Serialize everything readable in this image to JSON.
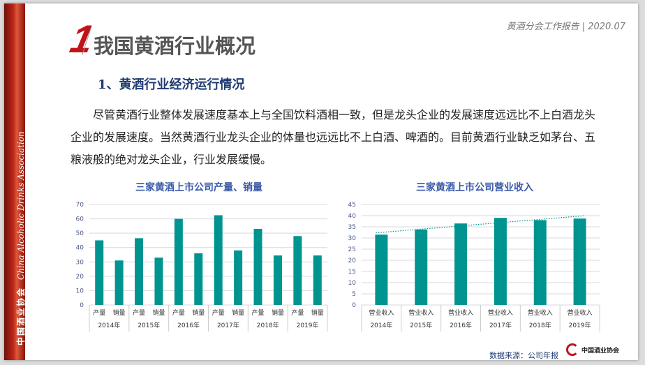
{
  "sidebar": {
    "org_cn": "中国酒业协会",
    "org_en": "China Alcoholic Drinks Association"
  },
  "header": {
    "section_number": "1",
    "title": "我国黄酒行业概况",
    "report": "黄酒分会工作报告 | 2020.07"
  },
  "section": {
    "subtitle": "1、黄酒行业经济运行情况",
    "paragraph": "尽管黄酒行业整体发展速度基本上与全国饮料酒相一致，但是龙头企业的发展速度远远比不上白酒龙头企业的发展速度。当然黄酒行业龙头企业的体量也远远比不上白酒、啤酒的。目前黄酒行业缺乏如茅台、五粮液般的绝对龙头企业，行业发展缓慢。"
  },
  "footer": {
    "source": "数据来源：公司年报",
    "logo_text": "中国酒业协会"
  },
  "colors": {
    "bar": "#009490",
    "accent": "#c0141b",
    "title": "#3a5aa8"
  },
  "chart_data": [
    {
      "type": "bar",
      "title": "三家黄酒上市公司产量、销量",
      "ylim": [
        0,
        70
      ],
      "yticks": [
        0,
        10,
        20,
        30,
        40,
        50,
        60,
        70
      ],
      "grid": true,
      "groups": [
        "2014年",
        "2015年",
        "2016年",
        "2017年",
        "2018年",
        "2019年"
      ],
      "subcategories": [
        "产量",
        "销量"
      ],
      "values": [
        [
          45,
          31
        ],
        [
          46.5,
          33
        ],
        [
          60,
          36
        ],
        [
          62.5,
          38
        ],
        [
          53,
          34.5
        ],
        [
          48,
          34.5
        ]
      ]
    },
    {
      "type": "bar",
      "title": "三家黄酒上市公司营业收入",
      "ylim": [
        0,
        45
      ],
      "yticks": [
        0,
        5,
        10,
        15,
        20,
        25,
        30,
        35,
        40,
        45
      ],
      "grid": true,
      "groups": [
        "2014年",
        "2015年",
        "2016年",
        "2017年",
        "2018年",
        "2019年"
      ],
      "subcategories": [
        "营业收入"
      ],
      "values": [
        [
          31.5
        ],
        [
          33.8
        ],
        [
          36.5
        ],
        [
          39
        ],
        [
          38
        ],
        [
          38.7
        ]
      ],
      "trendline": {
        "style": "dotted",
        "start": 32.3,
        "end": 40
      }
    }
  ]
}
